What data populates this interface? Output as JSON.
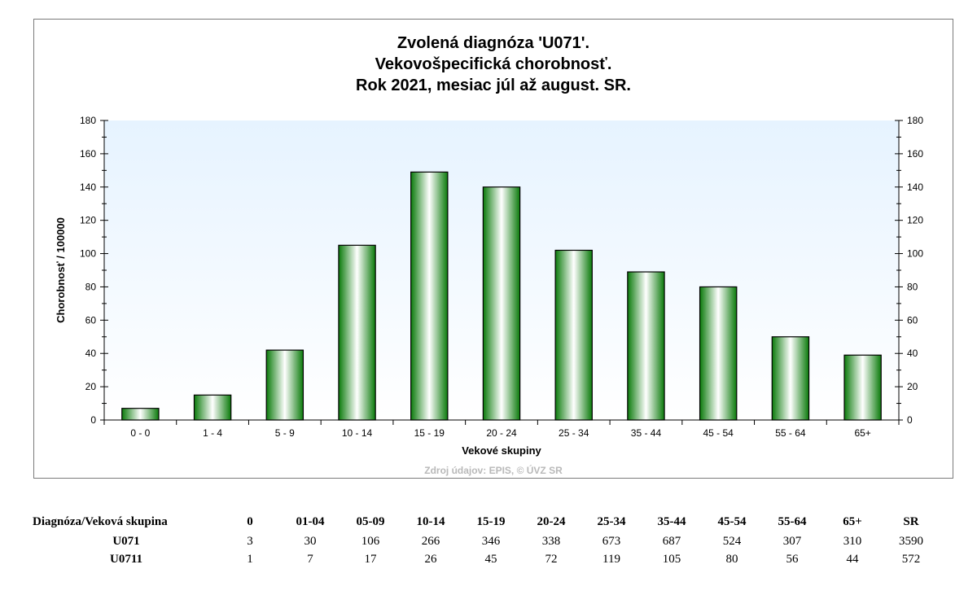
{
  "chart_data": {
    "type": "bar",
    "title_lines": [
      "Zvolená diagnóza 'U071'.",
      "Vekovošpecifická chorobnosť.",
      "Rok 2021, mesiac júl až august. SR."
    ],
    "xlabel": "Vekové skupiny",
    "ylabel": "Chorobnosť / 100000",
    "categories": [
      "0 - 0",
      "1 - 4",
      "5 - 9",
      "10 - 14",
      "15 - 19",
      "20 - 24",
      "25 - 34",
      "35 - 44",
      "45 - 54",
      "55 - 64",
      "65+"
    ],
    "values": [
      7,
      15,
      42,
      105,
      149,
      140,
      102,
      89,
      80,
      50,
      39
    ],
    "ylim": [
      0,
      180
    ],
    "yticks": [
      "0",
      "20",
      "40",
      "60",
      "80",
      "100",
      "120",
      "140",
      "160",
      "180"
    ],
    "source": "Zdroj údajov: EPIS, © ÚVZ SR",
    "colors": {
      "bar_dark": "#0a7a0a",
      "bar_light": "#ffffff",
      "plot_bg_top": "#e6f3ff",
      "plot_bg_bottom": "#ffffff"
    }
  },
  "table": {
    "headers": [
      "Diagnóza/Veková skupina",
      "0",
      "01-04",
      "05-09",
      "10-14",
      "15-19",
      "20-24",
      "25-34",
      "35-44",
      "45-54",
      "55-64",
      "65+",
      "SR"
    ],
    "rows": [
      {
        "label": "U071",
        "cells": [
          "3",
          "30",
          "106",
          "266",
          "346",
          "338",
          "673",
          "687",
          "524",
          "307",
          "310",
          "3590"
        ]
      },
      {
        "label": "U0711",
        "cells": [
          "1",
          "7",
          "17",
          "26",
          "45",
          "72",
          "119",
          "105",
          "80",
          "56",
          "44",
          "572"
        ]
      }
    ]
  }
}
